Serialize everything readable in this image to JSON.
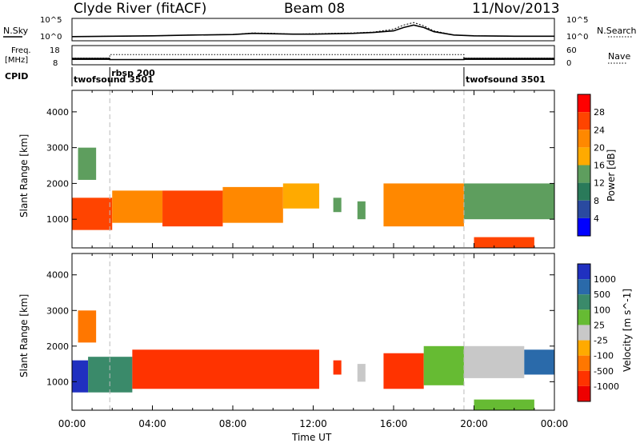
{
  "header": {
    "station": "Clyde River (fitACF)",
    "beam": "Beam 08",
    "date": "11/Nov/2013"
  },
  "labels": {
    "nsky": "N.Sky",
    "nsearch": "N.Search",
    "freq_line1": "Freq.",
    "freq_line2": "[MHz]",
    "nave": "Nave",
    "cpid": "CPID"
  },
  "noise_axis": {
    "left_ticks": [
      "10^5",
      "10^0"
    ],
    "right_ticks": [
      "10^5",
      "10^0"
    ]
  },
  "freq_axis": {
    "left_ticks": [
      "18",
      "8"
    ],
    "right_ticks": [
      "60",
      "0"
    ]
  },
  "cpid_segments": [
    {
      "name": "twofsound 3501",
      "start_hour": 0,
      "end_hour": 1.88
    },
    {
      "name": "rbsp 200",
      "start_hour": 1.88,
      "end_hour": 19.5
    },
    {
      "name": "twofsound 3501",
      "start_hour": 19.5,
      "end_hour": 24
    }
  ],
  "time_axis": {
    "label": "Time UT",
    "ticks": [
      "00:00",
      "04:00",
      "08:00",
      "12:00",
      "16:00",
      "20:00",
      "00:00"
    ]
  },
  "range_axis": {
    "label": "Slant Range [km]",
    "ticks": [
      "1000",
      "2000",
      "3000",
      "4000"
    ]
  },
  "power_scale": {
    "label": "Power [dB]",
    "ticks": [
      "28",
      "24",
      "20",
      "16",
      "12",
      "8",
      "4"
    ],
    "colors": [
      "#ff0000",
      "#ff4400",
      "#ff8800",
      "#ffaa00",
      "#5e9e5e",
      "#2a7a5a",
      "#2a4aa0",
      "#0000ff"
    ]
  },
  "velocity_scale": {
    "label": "Velocity [m s^-1]",
    "ticks": [
      "1000",
      "500",
      "100",
      "25",
      "-25",
      "-100",
      "-500",
      "-1000"
    ],
    "colors": [
      "#2030c0",
      "#2a6aaa",
      "#3a8a6a",
      "#66bb33",
      "#c8c8c8",
      "#ffaa00",
      "#ff7700",
      "#ff3300",
      "#ee0000"
    ]
  },
  "chart_data": [
    {
      "type": "line",
      "title": "",
      "ylabel": "N.Sky",
      "ylim_log10": [
        0,
        5
      ],
      "series": [
        {
          "name": "N.Sky",
          "x_hours": [
            0,
            2,
            4,
            6,
            8,
            9,
            10,
            11,
            12,
            13,
            14,
            15,
            16,
            16.5,
            17,
            17.5,
            18,
            19,
            20,
            22,
            24
          ],
          "log10_values": [
            0.8,
            0.9,
            1.0,
            1.2,
            1.3,
            1.6,
            1.5,
            1.4,
            1.4,
            1.5,
            1.6,
            1.8,
            2.2,
            3.0,
            3.6,
            3.0,
            2.0,
            1.2,
            1.0,
            0.9,
            0.9
          ]
        },
        {
          "name": "N.Search",
          "x_hours": [
            0,
            2,
            4,
            6,
            8,
            9,
            10,
            11,
            12,
            13,
            14,
            15,
            16,
            16.5,
            17,
            17.5,
            18,
            19,
            20,
            22,
            24
          ],
          "log10_values": [
            0.8,
            0.9,
            1.0,
            1.2,
            1.3,
            1.7,
            1.6,
            1.4,
            1.5,
            1.6,
            1.7,
            1.9,
            2.6,
            3.6,
            4.2,
            3.4,
            2.2,
            1.2,
            1.0,
            0.9,
            0.9
          ]
        }
      ]
    },
    {
      "type": "line",
      "ylabel": "Freq. [MHz]",
      "ylim": [
        8,
        18
      ],
      "series": [
        {
          "name": "Freq.",
          "x_hours": [
            0,
            1.88,
            1.88,
            19.5,
            19.5,
            24
          ],
          "values": [
            11,
            11,
            10.5,
            10.5,
            11,
            11
          ]
        },
        {
          "name": "Nave",
          "x_hours": [
            0,
            1.88,
            1.88,
            19.5,
            19.5,
            24
          ],
          "values": [
            20,
            20,
            32,
            32,
            20,
            20
          ]
        }
      ]
    },
    {
      "type": "heatmap",
      "quantity": "Power",
      "unit": "dB",
      "xlabel": "Time UT",
      "ylabel": "Slant Range [km]",
      "xlim_hours": [
        0,
        24
      ],
      "ylim": [
        200,
        4600
      ],
      "clim": [
        0,
        32
      ],
      "regions": [
        {
          "t0": 0.0,
          "t1": 2.0,
          "r0": 700,
          "r1": 1600,
          "value": 28
        },
        {
          "t0": 0.3,
          "t1": 1.2,
          "r0": 2100,
          "r1": 3000,
          "value": 16
        },
        {
          "t0": 2.0,
          "t1": 4.5,
          "r0": 900,
          "r1": 1800,
          "value": 24
        },
        {
          "t0": 4.5,
          "t1": 7.5,
          "r0": 800,
          "r1": 1800,
          "value": 26
        },
        {
          "t0": 7.5,
          "t1": 10.5,
          "r0": 900,
          "r1": 1900,
          "value": 22
        },
        {
          "t0": 10.5,
          "t1": 12.3,
          "r0": 1300,
          "r1": 2000,
          "value": 20
        },
        {
          "t0": 13.0,
          "t1": 13.4,
          "r0": 1200,
          "r1": 1600,
          "value": 16
        },
        {
          "t0": 14.2,
          "t1": 14.6,
          "r0": 1000,
          "r1": 1500,
          "value": 14
        },
        {
          "t0": 15.5,
          "t1": 19.5,
          "r0": 800,
          "r1": 2000,
          "value": 22
        },
        {
          "t0": 19.5,
          "t1": 24.0,
          "r0": 1000,
          "r1": 2000,
          "value": 16
        },
        {
          "t0": 20.0,
          "t1": 23.0,
          "r0": 200,
          "r1": 500,
          "value": 28
        }
      ]
    },
    {
      "type": "heatmap",
      "quantity": "Velocity",
      "unit": "m s^-1",
      "xlabel": "Time UT",
      "ylabel": "Slant Range [km]",
      "xlim_hours": [
        0,
        24
      ],
      "ylim": [
        200,
        4600
      ],
      "clim": [
        -1000,
        1000
      ],
      "regions": [
        {
          "t0": 0.0,
          "t1": 0.8,
          "r0": 700,
          "r1": 1600,
          "value": 800
        },
        {
          "t0": 0.8,
          "t1": 3.0,
          "r0": 700,
          "r1": 1700,
          "value": 150
        },
        {
          "t0": 0.3,
          "t1": 1.2,
          "r0": 2100,
          "r1": 3000,
          "value": -150
        },
        {
          "t0": 3.0,
          "t1": 12.3,
          "r0": 800,
          "r1": 1900,
          "value": -300
        },
        {
          "t0": 13.0,
          "t1": 13.4,
          "r0": 1200,
          "r1": 1600,
          "value": -300
        },
        {
          "t0": 14.2,
          "t1": 14.6,
          "r0": 1000,
          "r1": 1500,
          "value": 0
        },
        {
          "t0": 15.5,
          "t1": 17.5,
          "r0": 800,
          "r1": 1800,
          "value": -300
        },
        {
          "t0": 17.5,
          "t1": 19.5,
          "r0": 900,
          "r1": 2000,
          "value": 60
        },
        {
          "t0": 19.5,
          "t1": 22.5,
          "r0": 1100,
          "r1": 2000,
          "value": 0
        },
        {
          "t0": 22.5,
          "t1": 24.0,
          "r0": 1200,
          "r1": 1900,
          "value": 700
        },
        {
          "t0": 20.0,
          "t1": 23.0,
          "r0": 200,
          "r1": 500,
          "value": 60
        }
      ]
    }
  ]
}
